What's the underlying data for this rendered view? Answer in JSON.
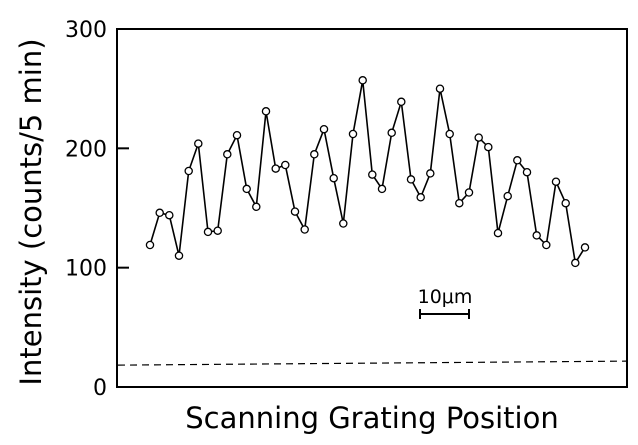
{
  "chart_data": {
    "type": "scatter",
    "mode": "line+markers",
    "xlabel": "Scanning Grating Position",
    "ylabel": "Intensity (counts/5 min)",
    "ylim": [
      0,
      300
    ],
    "yticks": [
      0,
      100,
      200,
      300
    ],
    "ytick_labels": [
      "0",
      "100",
      "200",
      "300"
    ],
    "xticks_shown": false,
    "grid": false,
    "background_level": 20,
    "scale_bar_label": "10μm",
    "series": [
      {
        "values": [
          119,
          146,
          144,
          110,
          181,
          204,
          130,
          131,
          195,
          211,
          166,
          151,
          231,
          183,
          186,
          147,
          132,
          195,
          216,
          175,
          137,
          212,
          257,
          178,
          166,
          213,
          239,
          174,
          159,
          179,
          250,
          212,
          154,
          163,
          209,
          201,
          129,
          160,
          190,
          180,
          127,
          119,
          172,
          154,
          104,
          117
        ]
      }
    ]
  }
}
